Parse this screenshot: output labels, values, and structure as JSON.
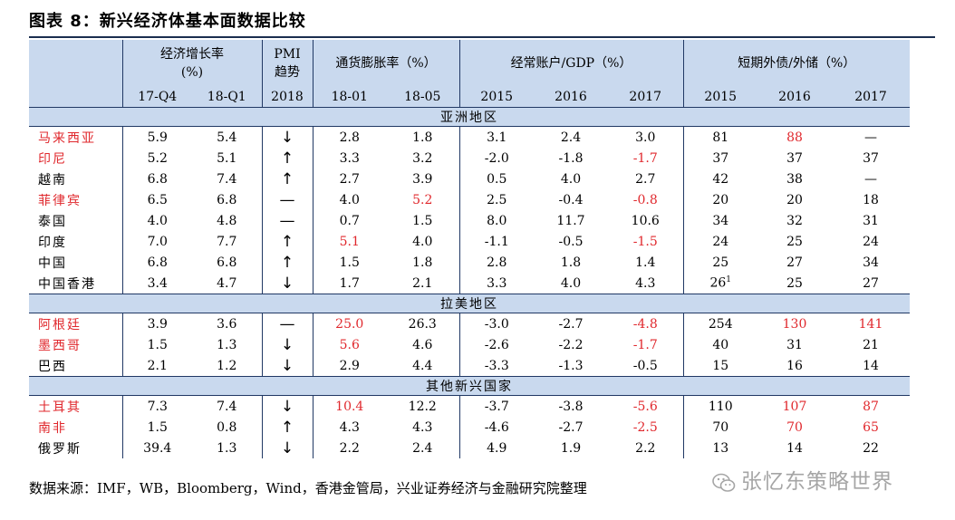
{
  "title": "图表 8：新兴经济体基本面数据比较",
  "headers": {
    "growth": "经济增长率（%）",
    "growth_line1": "经济增长率",
    "growth_line2": "(%)",
    "pmi_line1": "PMI",
    "pmi_line2": "趋势",
    "inflation": "通货膨胀率（%）",
    "current_account": "经常账户/GDP（%）",
    "short_debt": "短期外债/外储（%）"
  },
  "subheaders": [
    "17-Q4",
    "18-Q1",
    "2018",
    "18-01",
    "18-05",
    "2015",
    "2016",
    "2017",
    "2015",
    "2016",
    "2017"
  ],
  "regions": [
    {
      "name": "亚洲地区",
      "rows": [
        {
          "country": "马来西亚",
          "name_red": true,
          "growth_17q4": "5.9",
          "growth_18q1": "5.4",
          "pmi": "↓",
          "cpi_1801": "2.8",
          "cpi_1805": "1.8",
          "ca_2015": "3.1",
          "ca_2016": "2.4",
          "ca_2017": "3.0",
          "sd_2015": "81",
          "sd_2016": "88",
          "sd_2017": "—",
          "red": [
            "sd_2016"
          ]
        },
        {
          "country": "印尼",
          "name_red": true,
          "growth_17q4": "5.2",
          "growth_18q1": "5.1",
          "pmi": "↑",
          "cpi_1801": "3.3",
          "cpi_1805": "3.2",
          "ca_2015": "-2.0",
          "ca_2016": "-1.8",
          "ca_2017": "-1.7",
          "sd_2015": "37",
          "sd_2016": "37",
          "sd_2017": "37",
          "red": [
            "ca_2017"
          ]
        },
        {
          "country": "越南",
          "name_red": false,
          "growth_17q4": "6.8",
          "growth_18q1": "7.4",
          "pmi": "↑",
          "cpi_1801": "2.7",
          "cpi_1805": "3.9",
          "ca_2015": "0.5",
          "ca_2016": "4.0",
          "ca_2017": "2.7",
          "sd_2015": "42",
          "sd_2016": "38",
          "sd_2017": "—",
          "red": []
        },
        {
          "country": "菲律宾",
          "name_red": true,
          "growth_17q4": "6.5",
          "growth_18q1": "6.8",
          "pmi": "—",
          "cpi_1801": "4.0",
          "cpi_1805": "5.2",
          "ca_2015": "2.5",
          "ca_2016": "-0.4",
          "ca_2017": "-0.8",
          "sd_2015": "20",
          "sd_2016": "20",
          "sd_2017": "18",
          "red": [
            "cpi_1805",
            "ca_2017"
          ]
        },
        {
          "country": "泰国",
          "name_red": false,
          "growth_17q4": "4.0",
          "growth_18q1": "4.8",
          "pmi": "—",
          "cpi_1801": "0.7",
          "cpi_1805": "1.5",
          "ca_2015": "8.0",
          "ca_2016": "11.7",
          "ca_2017": "10.6",
          "sd_2015": "34",
          "sd_2016": "32",
          "sd_2017": "31",
          "red": []
        },
        {
          "country": "印度",
          "name_red": false,
          "growth_17q4": "7.0",
          "growth_18q1": "7.7",
          "pmi": "↑",
          "cpi_1801": "5.1",
          "cpi_1805": "4.0",
          "ca_2015": "-1.1",
          "ca_2016": "-0.5",
          "ca_2017": "-1.5",
          "sd_2015": "24",
          "sd_2016": "25",
          "sd_2017": "24",
          "red": [
            "cpi_1801",
            "ca_2017"
          ]
        },
        {
          "country": "中国",
          "name_red": false,
          "growth_17q4": "6.8",
          "growth_18q1": "6.8",
          "pmi": "↑",
          "cpi_1801": "1.5",
          "cpi_1805": "1.8",
          "ca_2015": "2.8",
          "ca_2016": "1.8",
          "ca_2017": "1.4",
          "sd_2015": "25",
          "sd_2016": "27",
          "sd_2017": "34",
          "red": []
        },
        {
          "country": "中国香港",
          "name_red": false,
          "growth_17q4": "3.4",
          "growth_18q1": "4.7",
          "pmi": "↓",
          "cpi_1801": "1.7",
          "cpi_1805": "2.1",
          "ca_2015": "3.3",
          "ca_2016": "4.0",
          "ca_2017": "4.3",
          "sd_2015": "26",
          "sd_2015_sup": "1",
          "sd_2016": "25",
          "sd_2017": "27",
          "red": []
        }
      ]
    },
    {
      "name": "拉美地区",
      "rows": [
        {
          "country": "阿根廷",
          "name_red": true,
          "growth_17q4": "3.9",
          "growth_18q1": "3.6",
          "pmi": "—",
          "cpi_1801": "25.0",
          "cpi_1805": "26.3",
          "ca_2015": "-3.0",
          "ca_2016": "-2.7",
          "ca_2017": "-4.8",
          "sd_2015": "254",
          "sd_2016": "130",
          "sd_2017": "141",
          "red": [
            "cpi_1801",
            "ca_2017",
            "sd_2016",
            "sd_2017"
          ]
        },
        {
          "country": "墨西哥",
          "name_red": true,
          "growth_17q4": "1.5",
          "growth_18q1": "1.3",
          "pmi": "↓",
          "cpi_1801": "5.6",
          "cpi_1805": "4.6",
          "ca_2015": "-2.6",
          "ca_2016": "-2.2",
          "ca_2017": "-1.7",
          "sd_2015": "40",
          "sd_2016": "31",
          "sd_2017": "21",
          "red": [
            "cpi_1801",
            "ca_2017"
          ]
        },
        {
          "country": "巴西",
          "name_red": false,
          "growth_17q4": "2.1",
          "growth_18q1": "1.2",
          "pmi": "↓",
          "cpi_1801": "2.9",
          "cpi_1805": "4.4",
          "ca_2015": "-3.3",
          "ca_2016": "-1.3",
          "ca_2017": "-0.5",
          "sd_2015": "15",
          "sd_2016": "16",
          "sd_2017": "14",
          "red": []
        }
      ]
    },
    {
      "name": "其他新兴国家",
      "rows": [
        {
          "country": "土耳其",
          "name_red": true,
          "growth_17q4": "7.3",
          "growth_18q1": "7.4",
          "pmi": "↓",
          "cpi_1801": "10.4",
          "cpi_1805": "12.2",
          "ca_2015": "-3.7",
          "ca_2016": "-3.8",
          "ca_2017": "-5.6",
          "sd_2015": "110",
          "sd_2016": "107",
          "sd_2017": "87",
          "red": [
            "cpi_1801",
            "ca_2017",
            "sd_2016",
            "sd_2017"
          ]
        },
        {
          "country": "南非",
          "name_red": true,
          "growth_17q4": "1.5",
          "growth_18q1": "0.8",
          "pmi": "↑",
          "cpi_1801": "4.3",
          "cpi_1805": "4.3",
          "ca_2015": "-4.6",
          "ca_2016": "-2.7",
          "ca_2017": "-2.5",
          "sd_2015": "70",
          "sd_2016": "70",
          "sd_2017": "65",
          "red": [
            "ca_2017",
            "sd_2016",
            "sd_2017"
          ]
        },
        {
          "country": "俄罗斯",
          "name_red": false,
          "growth_17q4": "39.4",
          "growth_18q1": "1.3",
          "pmi": "↓",
          "cpi_1801": "2.2",
          "cpi_1805": "2.4",
          "ca_2015": "4.9",
          "ca_2016": "1.9",
          "ca_2017": "2.2",
          "sd_2015": "13",
          "sd_2016": "14",
          "sd_2017": "22",
          "red": []
        }
      ]
    }
  ],
  "source": "数据来源：IMF，WB，Bloomberg，Wind，香港金管局，兴业证券经济与金融研究院整理",
  "watermark": "张忆东策略世界",
  "colors": {
    "header_bg": "#c9d9ee",
    "red": "#e0282d",
    "rule": "#1b2e4f"
  }
}
